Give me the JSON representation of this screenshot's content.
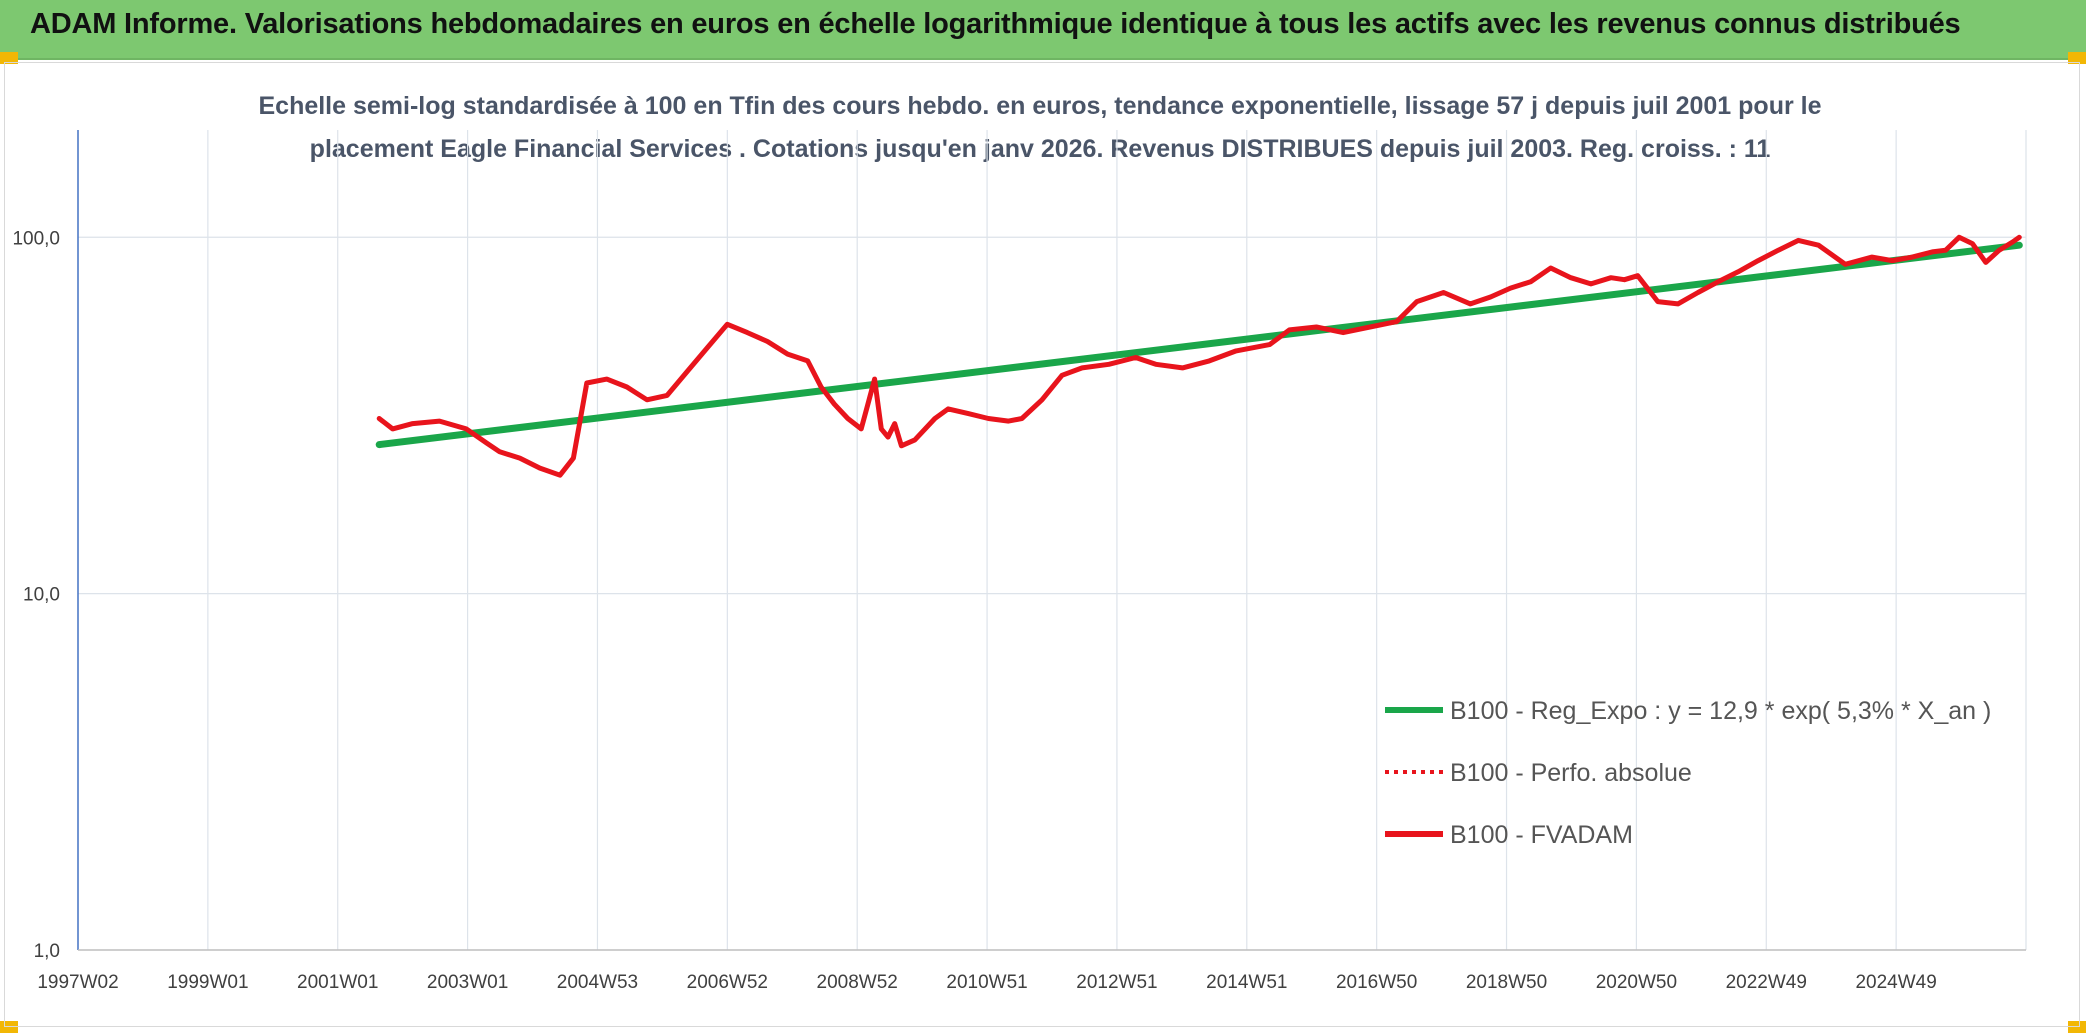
{
  "header": {
    "title": "ADAM Informe. Valorisations hebdomadaires en euros en échelle logarithmique identique à tous les actifs avec les revenus connus distribués"
  },
  "chart_data": {
    "type": "line",
    "title_line1": "Echelle semi-log standardisée à 100 en Tfin des cours hebdo. en euros, tendance exponentielle, lissage 57 j depuis juil 2001 pour le",
    "title_line2": "placement Eagle Financial Services . Cotations jusqu'en janv 2026. Revenus DISTRIBUES depuis juil 2003. Reg. croiss. : 11",
    "x_tick_labels": [
      "1997W02",
      "1999W01",
      "2001W01",
      "2003W01",
      "2004W53",
      "2006W52",
      "2008W52",
      "2010W51",
      "2012W51",
      "2014W51",
      "2016W50",
      "2018W50",
      "2020W50",
      "2022W49",
      "2024W49"
    ],
    "x_range": [
      1997.0,
      2026.1
    ],
    "y_scale": "log",
    "y_range": [
      1,
      200
    ],
    "y_tick_labels": [
      {
        "value": 1,
        "label": "1,0"
      },
      {
        "value": 10,
        "label": "10,0"
      },
      {
        "value": 100,
        "label": "100,0"
      }
    ],
    "grid": "vertical-and-horizontal",
    "legend_position": "bottom-right",
    "series": [
      {
        "name": "B100 - Reg_Expo : y = 12,9 * exp( 5,3% *  X_an )",
        "color": "#1aa64a",
        "style": "solid",
        "x": [
          2001.5,
          2026.0
        ],
        "y": [
          26.2,
          95.0
        ]
      },
      {
        "name": "B100 - Perfo. absolue",
        "color": "#e8141c",
        "style": "dotted",
        "x": [],
        "y": []
      },
      {
        "name": "B100 - FVADAM",
        "color": "#e8141c",
        "style": "solid",
        "x": [
          2001.5,
          2001.7,
          2002.0,
          2002.4,
          2002.8,
          2003.1,
          2003.3,
          2003.6,
          2003.9,
          2004.2,
          2004.4,
          2004.6,
          2004.9,
          2005.2,
          2005.5,
          2005.8,
          2006.1,
          2006.4,
          2006.7,
          2007.0,
          2007.3,
          2007.6,
          2007.9,
          2008.1,
          2008.3,
          2008.5,
          2008.7,
          2008.8,
          2008.9,
          2009.0,
          2009.1,
          2009.2,
          2009.3,
          2009.5,
          2009.8,
          2010.0,
          2010.3,
          2010.6,
          2010.9,
          2011.1,
          2011.4,
          2011.7,
          2012.0,
          2012.4,
          2012.8,
          2013.1,
          2013.5,
          2013.9,
          2014.3,
          2014.8,
          2015.1,
          2015.5,
          2015.9,
          2016.3,
          2016.7,
          2017.0,
          2017.4,
          2017.8,
          2018.1,
          2018.4,
          2018.7,
          2019.0,
          2019.3,
          2019.6,
          2019.9,
          2020.1,
          2020.3,
          2020.6,
          2020.9,
          2021.2,
          2021.5,
          2021.8,
          2022.1,
          2022.4,
          2022.7,
          2023.0,
          2023.4,
          2023.8,
          2024.1,
          2024.4,
          2024.7,
          2024.9,
          2025.1,
          2025.3,
          2025.5,
          2025.7,
          2025.9,
          2026.0
        ],
        "y": [
          31,
          29,
          30,
          30.5,
          29,
          26.5,
          25,
          24,
          22.5,
          21.5,
          24,
          39,
          40,
          38,
          35,
          36,
          42,
          49,
          57,
          54,
          51,
          47,
          45,
          38,
          34,
          31,
          29,
          34,
          40,
          29,
          27.5,
          30,
          26,
          27,
          31,
          33,
          32,
          31,
          30.5,
          31,
          35,
          41,
          43,
          44,
          46,
          44,
          43,
          45,
          48,
          50,
          55,
          56,
          54,
          56,
          58,
          66,
          70,
          65,
          68,
          72,
          75,
          82,
          77,
          74,
          77,
          76,
          78,
          66,
          65,
          70,
          75,
          80,
          86,
          92,
          98,
          95,
          84,
          88,
          86,
          88,
          91,
          92,
          100,
          96,
          85,
          92,
          97,
          100
        ]
      }
    ]
  }
}
